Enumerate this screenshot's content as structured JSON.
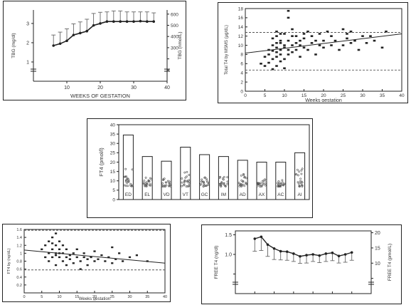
{
  "chart_data": [
    {
      "type": "line",
      "xlabel": "WEEKS OF GESTATION",
      "ylabel": "TBG (mg/dl)",
      "ylabel_right": "TBG (nmol/L)",
      "xlim": [
        0,
        40
      ],
      "ylim": [
        0,
        3.7
      ],
      "ylim_right": [
        0,
        637
      ],
      "xticks": [
        10,
        20,
        30,
        40
      ],
      "yticks": [
        1,
        2,
        3
      ],
      "yticks_right": [
        100,
        200,
        300,
        400,
        500,
        600
      ],
      "yticks_right_labels": [
        "",
        "",
        "300",
        "400",
        "500",
        "600"
      ],
      "grid": false,
      "series": [
        {
          "x": [
            6,
            8,
            10,
            12,
            14,
            16,
            18,
            20,
            22,
            24,
            26,
            28,
            30,
            32,
            34,
            36
          ],
          "values": [
            1.85,
            1.95,
            2.1,
            2.4,
            2.5,
            2.6,
            2.9,
            3.0,
            3.1,
            3.1,
            3.1,
            3.1,
            3.1,
            3.12,
            3.1,
            3.1
          ],
          "err_up": [
            0.55,
            0.6,
            0.62,
            0.58,
            0.58,
            0.62,
            0.62,
            0.58,
            0.5,
            0.55,
            0.55,
            0.5,
            0.5,
            0.48,
            0.5,
            0.45
          ]
        }
      ]
    },
    {
      "type": "scatter",
      "xlabel": "Weeks gestation",
      "ylabel": "Total T4 by MSMS (µg/dL)",
      "xlim": [
        0,
        40
      ],
      "ylim": [
        0,
        18
      ],
      "xticks": [
        0,
        5,
        10,
        15,
        20,
        25,
        30,
        35,
        40
      ],
      "yticks": [
        0,
        2,
        4,
        6,
        8,
        10,
        12,
        14,
        16,
        18
      ],
      "grid": false,
      "reference_lines": [
        12.8,
        4.6
      ],
      "regression": {
        "x": [
          0,
          40
        ],
        "y": [
          8.3,
          12.5
        ]
      },
      "series": [
        {
          "x": [
            4,
            5,
            5,
            6,
            6,
            6,
            7,
            7,
            7,
            7,
            7,
            8,
            8,
            8,
            8,
            8,
            8,
            8,
            9,
            9,
            9,
            9,
            9,
            9,
            10,
            10,
            10,
            10,
            10,
            11,
            11,
            11,
            11,
            11,
            12,
            12,
            12,
            12,
            13,
            13,
            13,
            14,
            14,
            14,
            15,
            15,
            15,
            16,
            16,
            17,
            17,
            18,
            18,
            19,
            19,
            20,
            20,
            21,
            22,
            22,
            23,
            24,
            25,
            25,
            26,
            26,
            27,
            27,
            28,
            29,
            30,
            31,
            32,
            33,
            35,
            36
          ],
          "values": [
            6.0,
            5.5,
            7.5,
            6.2,
            8.0,
            9.0,
            4.8,
            7.0,
            8.8,
            10.0,
            11.5,
            5.5,
            7.5,
            8.5,
            9.5,
            10.5,
            12.0,
            13.0,
            6.5,
            8.0,
            9.0,
            10.5,
            11.0,
            12.5,
            5.0,
            7.0,
            9.5,
            10.0,
            12.5,
            17.5,
            8.0,
            9.0,
            11.0,
            16.0,
            8.5,
            10.0,
            12.0,
            13.5,
            9.0,
            10.5,
            12.0,
            7.5,
            10.0,
            11.0,
            9.5,
            11.5,
            12.5,
            9.0,
            13.0,
            10.5,
            12.0,
            8.0,
            11.0,
            10.0,
            12.5,
            9.5,
            11.0,
            13.0,
            10.0,
            12.0,
            11.0,
            9.0,
            13.5,
            10.0,
            11.5,
            12.5,
            10.5,
            13.0,
            11.0,
            9.0,
            12.0,
            10.5,
            12.0,
            11.0,
            9.5,
            13.0
          ]
        }
      ]
    },
    {
      "type": "bar",
      "ylabel": "FT4 (pmol/l)",
      "ylim": [
        0,
        40
      ],
      "yticks": [
        0,
        5,
        10,
        15,
        20,
        25,
        30,
        35,
        40
      ],
      "categories": [
        "ED",
        "EL",
        "VD",
        "VT",
        "GC",
        "IM",
        "AD",
        "AX",
        "AC",
        "AI"
      ],
      "values": [
        34.5,
        23.0,
        20.5,
        28.0,
        24.0,
        23.0,
        21.0,
        20.0,
        20.0,
        25.0
      ],
      "point_clusters_range": [
        [
          7,
          17
        ],
        [
          7,
          12
        ],
        [
          7,
          12
        ],
        [
          7,
          16
        ],
        [
          7,
          12
        ],
        [
          7,
          13
        ],
        [
          7,
          14
        ],
        [
          7,
          11
        ],
        [
          7,
          11
        ],
        [
          7,
          17
        ]
      ]
    },
    {
      "type": "scatter",
      "xlabel": "Weeks gestation",
      "ylabel": "FT4 by (ng/dL)",
      "xlim": [
        0,
        40
      ],
      "ylim": [
        0,
        1.6
      ],
      "xticks": [
        0,
        5,
        10,
        15,
        20,
        25,
        30,
        35,
        40
      ],
      "yticks": [
        0.2,
        0.4,
        0.6,
        0.8,
        1,
        1.2,
        1.4,
        1.6
      ],
      "grid": false,
      "reference_lines": [
        1.58,
        0.58
      ],
      "regression": {
        "x": [
          0,
          40
        ],
        "y": [
          1.08,
          0.75
        ]
      },
      "series": [
        {
          "x": [
            5,
            6,
            6,
            7,
            7,
            7,
            8,
            8,
            8,
            8,
            9,
            9,
            9,
            9,
            9,
            10,
            10,
            10,
            10,
            11,
            11,
            11,
            12,
            12,
            12,
            13,
            13,
            14,
            14,
            15,
            15,
            16,
            16,
            17,
            17,
            18,
            18,
            19,
            20,
            20,
            21,
            22,
            23,
            24,
            25,
            25,
            26,
            27,
            28,
            30,
            32,
            35
          ],
          "values": [
            1.1,
            1.2,
            0.9,
            1.3,
            1.0,
            0.8,
            1.4,
            1.1,
            0.9,
            1.25,
            1.5,
            1.0,
            0.95,
            1.2,
            0.7,
            1.0,
            0.9,
            1.3,
            1.1,
            1.0,
            0.8,
            1.2,
            0.9,
            1.1,
            0.7,
            0.95,
            0.85,
            1.0,
            0.75,
            0.9,
            1.1,
            0.8,
            0.6,
            0.9,
            1.0,
            0.85,
            0.7,
            0.9,
            0.8,
            1.05,
            0.85,
            0.95,
            0.8,
            0.9,
            1.15,
            0.75,
            0.85,
            1.0,
            0.8,
            0.9,
            0.95,
            0.8
          ]
        }
      ]
    },
    {
      "type": "line",
      "ylabel": "FREE T4 (ng/dl)",
      "ylabel_right": "FREE T4 (pmol/L)",
      "ylim": [
        0,
        1.6
      ],
      "ylim_right": [
        0,
        20.6
      ],
      "yticks": [
        0.5,
        1.0,
        1.5
      ],
      "yticks_labels": [
        "",
        "1.0",
        "1.5"
      ],
      "yticks_right": [
        5,
        10,
        15,
        20
      ],
      "yticks_right_labels": [
        "",
        "10",
        "15",
        "20"
      ],
      "grid": false,
      "xlim": [
        0,
        42
      ],
      "series": [
        {
          "x": [
            6,
            8,
            10,
            12,
            14,
            16,
            18,
            20,
            22,
            24,
            26,
            28,
            30,
            32,
            34,
            36
          ],
          "values": [
            1.4,
            1.45,
            1.25,
            1.15,
            1.08,
            1.07,
            1.02,
            0.95,
            0.98,
            1.0,
            0.97,
            1.02,
            1.04,
            0.96,
            1.0,
            1.05
          ],
          "err_down": [
            0.32,
            0.35,
            0.3,
            0.28,
            0.22,
            0.22,
            0.2,
            0.18,
            0.2,
            0.18,
            0.18,
            0.2,
            0.2,
            0.18,
            0.2,
            0.2
          ]
        }
      ]
    }
  ]
}
